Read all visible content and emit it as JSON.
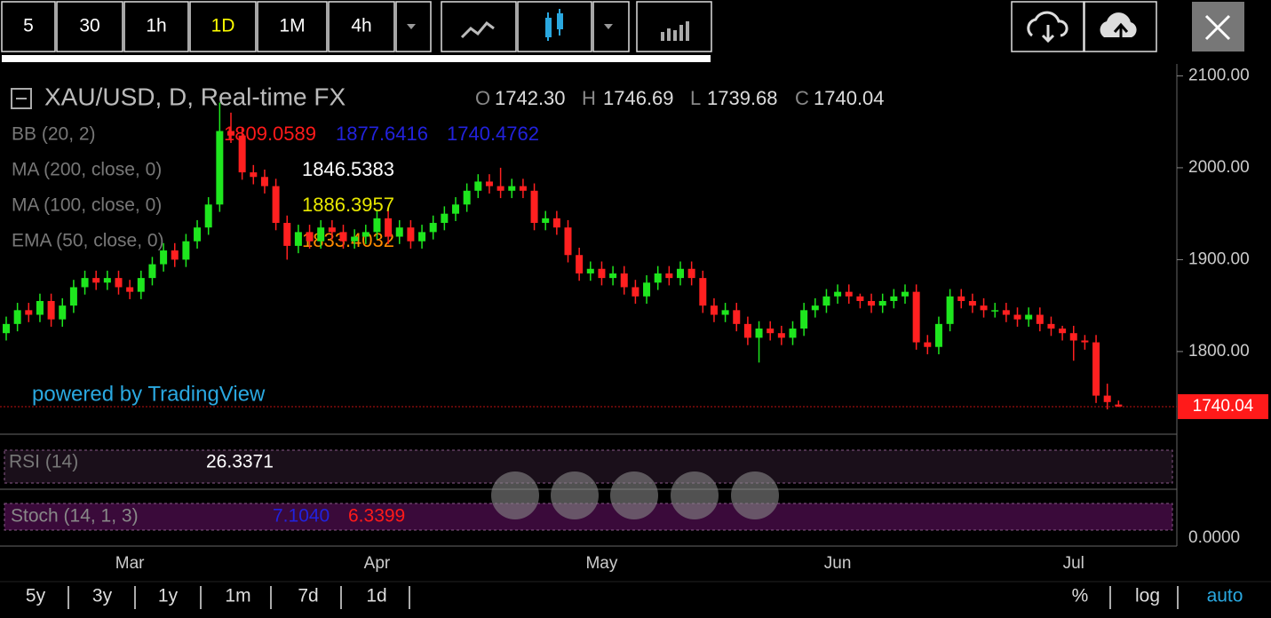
{
  "chart_data": {
    "type": "candlestick",
    "title": "XAU/USD, D, Real-time FX",
    "categories": [
      null,
      null,
      null,
      null,
      null,
      null,
      null,
      null,
      null,
      null,
      null,
      "Mar",
      null,
      null,
      null,
      null,
      null,
      null,
      null,
      null,
      null,
      null,
      null,
      null,
      null,
      null,
      null,
      null,
      null,
      null,
      null,
      null,
      null,
      "Apr",
      null,
      null,
      null,
      null,
      null,
      null,
      null,
      null,
      null,
      null,
      null,
      null,
      null,
      null,
      null,
      null,
      null,
      null,
      null,
      "May",
      null,
      null,
      null,
      null,
      null,
      null,
      null,
      null,
      null,
      null,
      null,
      null,
      null,
      null,
      null,
      null,
      null,
      null,
      null,
      null,
      "Jun",
      null,
      null,
      null,
      null,
      null,
      null,
      null,
      null,
      null,
      null,
      null,
      null,
      null,
      null,
      null,
      null,
      null,
      null,
      null,
      null,
      "Jul",
      null,
      null,
      null,
      null
    ],
    "open": [
      1820,
      1830,
      1845,
      1840,
      1855,
      1835,
      1850,
      1870,
      1880,
      1875,
      1880,
      1870,
      1865,
      1880,
      1895,
      1910,
      1900,
      1920,
      1935,
      1960,
      2040,
      2035,
      1995,
      1990,
      1980,
      1940,
      1915,
      1930,
      1920,
      1935,
      1930,
      1920,
      1925,
      1930,
      1945,
      1925,
      1935,
      1920,
      1930,
      1940,
      1950,
      1960,
      1975,
      1985,
      1980,
      1975,
      1980,
      1975,
      1940,
      1945,
      1935,
      1905,
      1885,
      1890,
      1880,
      1885,
      1870,
      1860,
      1875,
      1885,
      1880,
      1890,
      1880,
      1850,
      1840,
      1845,
      1830,
      1815,
      1825,
      1820,
      1815,
      1825,
      1845,
      1850,
      1860,
      1865,
      1860,
      1855,
      1850,
      1855,
      1860,
      1865,
      1810,
      1805,
      1830,
      1860,
      1855,
      1850,
      1845,
      1845,
      1840,
      1835,
      1840,
      1830,
      1825,
      1820,
      1812,
      1810,
      1752,
      1742.3
    ],
    "high": [
      1838,
      1853,
      1853,
      1863,
      1863,
      1858,
      1878,
      1888,
      1888,
      1888,
      1888,
      1878,
      1888,
      1903,
      1918,
      1918,
      1928,
      1943,
      1968,
      2071,
      2060,
      2043,
      2003,
      1998,
      1988,
      1948,
      1938,
      1938,
      1943,
      1943,
      1938,
      1933,
      1938,
      1953,
      1953,
      1943,
      1943,
      1938,
      1948,
      1958,
      1968,
      1983,
      1993,
      1993,
      2000,
      1988,
      1988,
      1983,
      1953,
      1953,
      1943,
      1913,
      1898,
      1898,
      1893,
      1893,
      1878,
      1883,
      1893,
      1893,
      1898,
      1898,
      1888,
      1858,
      1853,
      1853,
      1838,
      1833,
      1833,
      1828,
      1833,
      1853,
      1858,
      1868,
      1873,
      1873,
      1863,
      1863,
      1863,
      1868,
      1873,
      1873,
      1818,
      1838,
      1868,
      1868,
      1863,
      1858,
      1853,
      1853,
      1848,
      1848,
      1848,
      1838,
      1828,
      1828,
      1818,
      1818,
      1765,
      1746.69
    ],
    "low": [
      1812,
      1822,
      1832,
      1832,
      1827,
      1827,
      1842,
      1862,
      1867,
      1867,
      1862,
      1857,
      1857,
      1872,
      1887,
      1892,
      1892,
      1912,
      1927,
      1952,
      2027,
      1987,
      1982,
      1972,
      1932,
      1900,
      1907,
      1912,
      1912,
      1922,
      1912,
      1912,
      1917,
      1922,
      1917,
      1917,
      1912,
      1912,
      1922,
      1932,
      1942,
      1952,
      1967,
      1972,
      1967,
      1967,
      1967,
      1932,
      1932,
      1927,
      1897,
      1877,
      1877,
      1872,
      1872,
      1862,
      1852,
      1852,
      1867,
      1872,
      1872,
      1872,
      1842,
      1832,
      1832,
      1822,
      1807,
      1788,
      1812,
      1807,
      1807,
      1817,
      1837,
      1842,
      1852,
      1852,
      1847,
      1842,
      1842,
      1847,
      1852,
      1802,
      1797,
      1797,
      1822,
      1847,
      1842,
      1837,
      1837,
      1832,
      1827,
      1827,
      1822,
      1817,
      1812,
      1790,
      1802,
      1744,
      1737,
      1739.68
    ],
    "close": [
      1830,
      1845,
      1840,
      1855,
      1835,
      1850,
      1870,
      1880,
      1875,
      1880,
      1870,
      1865,
      1880,
      1895,
      1910,
      1900,
      1920,
      1935,
      1960,
      2040,
      2035,
      1995,
      1990,
      1980,
      1940,
      1915,
      1930,
      1920,
      1935,
      1930,
      1920,
      1925,
      1930,
      1945,
      1925,
      1935,
      1920,
      1930,
      1940,
      1950,
      1960,
      1975,
      1985,
      1980,
      1975,
      1980,
      1975,
      1940,
      1945,
      1935,
      1905,
      1885,
      1890,
      1880,
      1885,
      1870,
      1860,
      1875,
      1885,
      1880,
      1890,
      1880,
      1850,
      1840,
      1845,
      1830,
      1815,
      1825,
      1820,
      1815,
      1825,
      1845,
      1850,
      1860,
      1865,
      1860,
      1855,
      1850,
      1855,
      1860,
      1865,
      1810,
      1805,
      1830,
      1860,
      1855,
      1850,
      1845,
      1845,
      1840,
      1835,
      1840,
      1830,
      1825,
      1820,
      1812,
      1810,
      1752,
      1745,
      1740.04
    ],
    "up_color": "#1ee61e",
    "down_color": "#ff2020",
    "ylim": [
      1711,
      2113
    ],
    "yticks": [
      {
        "value": 2100,
        "label": "2100.00"
      },
      {
        "value": 2000,
        "label": "2000.00"
      },
      {
        "value": 1900,
        "label": "1900.00"
      },
      {
        "value": 1800,
        "label": "1800.00"
      }
    ],
    "last_price": {
      "value": 1740.04,
      "label": "1740.04"
    },
    "legend": {
      "o": "O",
      "o_val": "1742.30",
      "h": "H",
      "h_val": "1746.69",
      "l": "L",
      "l_val": "1739.68",
      "c": "C",
      "c_val": "1740.04"
    },
    "indicators": {
      "bb": "BB (20, 2)",
      "bb_vals": [
        "1809.0589",
        "1877.6416",
        "1740.4762"
      ],
      "ma200": "MA (200, close, 0)",
      "ma200_val": "1846.5383",
      "ma100": "MA (100, close, 0)",
      "ma100_val": "1886.3957",
      "ema50": "EMA (50, close, 0)",
      "ema50_val": "1833.4032",
      "rsi": "RSI (14)",
      "rsi_val": "26.3371",
      "stoch": "Stoch (14, 1, 3)",
      "stoch_vals": [
        "7.1040",
        "6.3399"
      ],
      "stoch_axis": "0.0000"
    },
    "watermark": "powered by TradingView"
  },
  "ui": {
    "intervals": [
      "5",
      "30",
      "1h",
      "1D",
      "1M",
      "4h"
    ],
    "ranges": [
      "5y",
      "3y",
      "1y",
      "1m",
      "7d",
      "1d"
    ],
    "scale_modes": [
      "%",
      "log",
      "auto"
    ]
  }
}
